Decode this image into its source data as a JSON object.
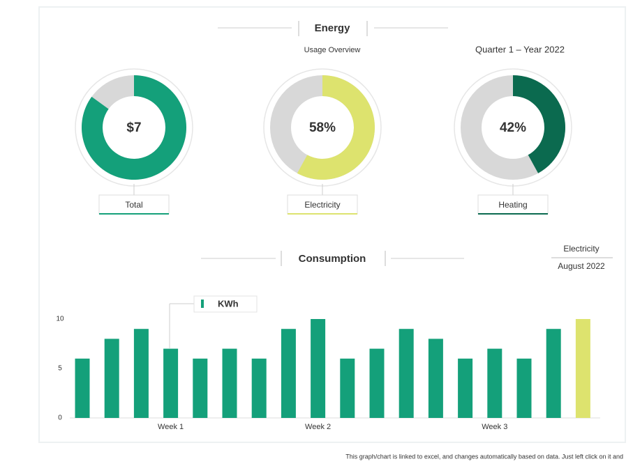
{
  "header": {
    "title": "Energy",
    "subtitle": "Usage Overview",
    "period": "Quarter 1 – Year 2022"
  },
  "section": {
    "title": "Consumption",
    "label": "Electricity",
    "period": "August 2022"
  },
  "footer": "This graph/chart is linked to excel, and changes automatically based on data. Just left click on it and",
  "chart_data": [
    {
      "type": "donut",
      "title": "Total",
      "center_text": "$7",
      "values": [
        85
      ],
      "color": "#14a07a"
    },
    {
      "type": "donut",
      "title": "Electricity",
      "values": [
        58
      ],
      "value_labels": [
        "58%"
      ],
      "color": "#dde36e"
    },
    {
      "type": "donut",
      "title": "Heating",
      "values": [
        42
      ],
      "value_labels": [
        "42%"
      ],
      "color": "#0b6a4f"
    },
    {
      "type": "bar",
      "categories": [
        null,
        null,
        null,
        "Week 1",
        null,
        null,
        null,
        null,
        "Week 2",
        null,
        null,
        null,
        null,
        null,
        "Week 3",
        null,
        null,
        null
      ],
      "series": [
        {
          "name": "KWh",
          "color": "#14a07a",
          "values": [
            6,
            8,
            9,
            7,
            6,
            7,
            6,
            9,
            10,
            6,
            7,
            9,
            8,
            6,
            7,
            6,
            9,
            10
          ],
          "colors": [
            "#14a07a",
            "#14a07a",
            "#14a07a",
            "#14a07a",
            "#14a07a",
            "#14a07a",
            "#14a07a",
            "#14a07a",
            "#14a07a",
            "#14a07a",
            "#14a07a",
            "#14a07a",
            "#14a07a",
            "#14a07a",
            "#14a07a",
            "#14a07a",
            "#14a07a",
            "#dde36e"
          ]
        }
      ],
      "ylim": [
        0,
        10
      ],
      "yticks": [
        0,
        5,
        10
      ],
      "grid": false
    }
  ]
}
